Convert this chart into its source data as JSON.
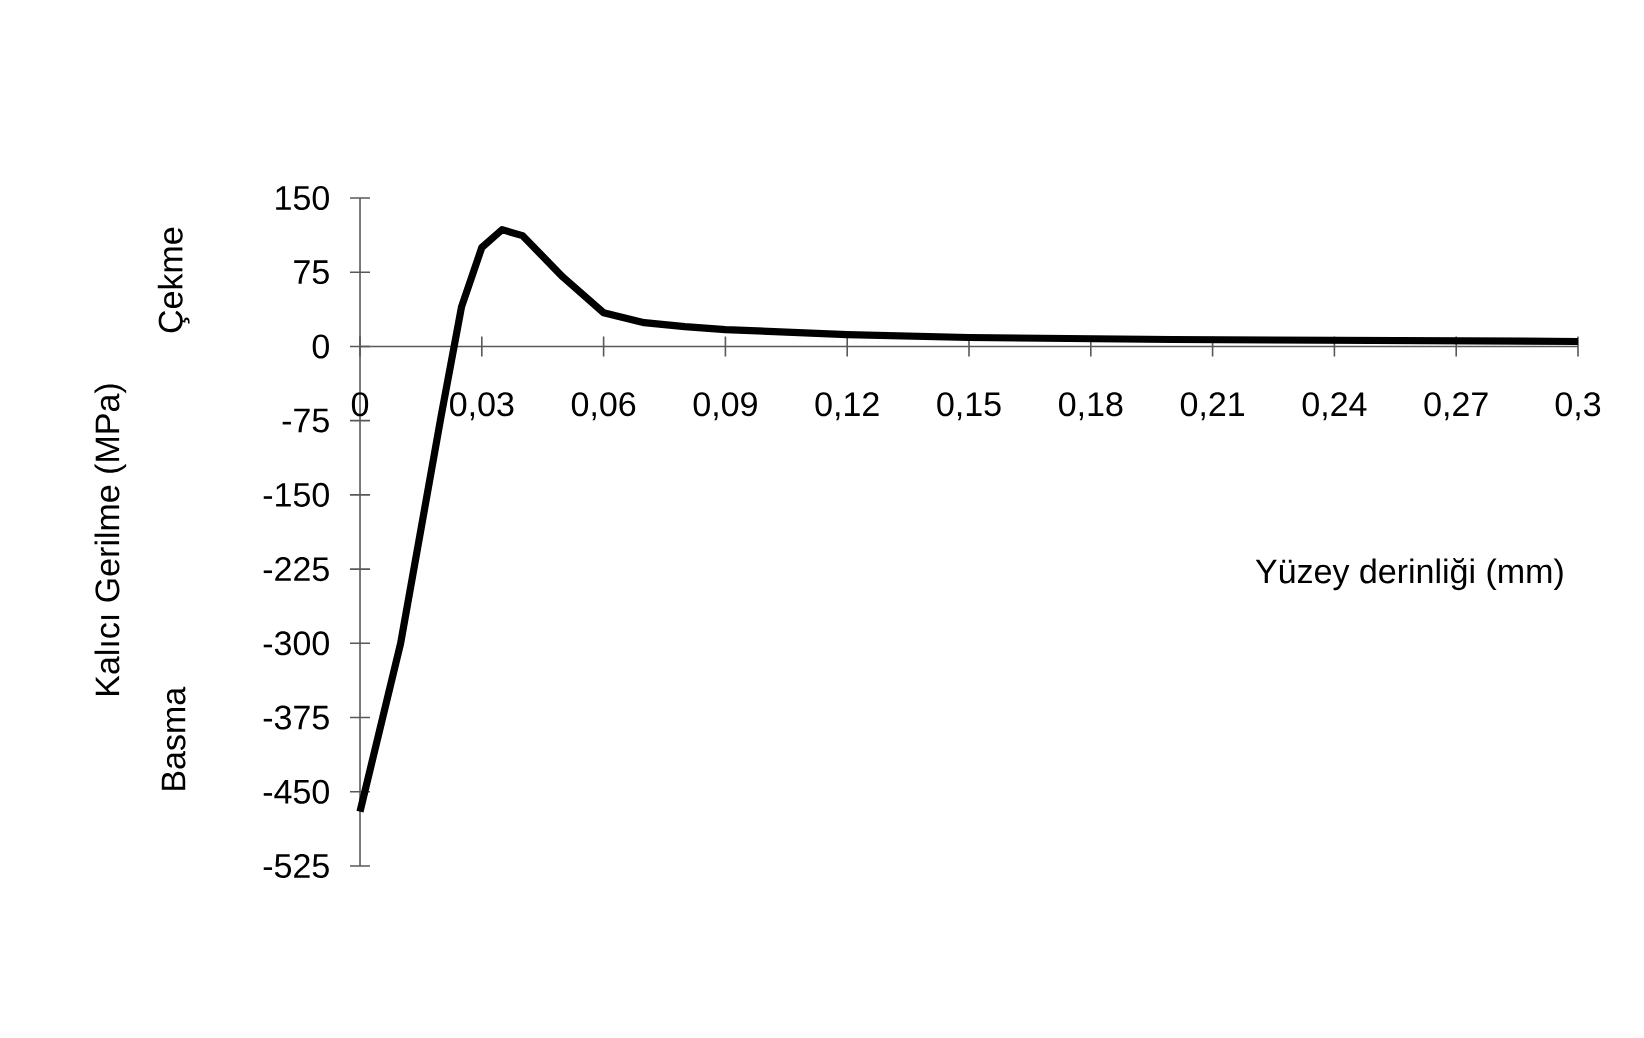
{
  "chart_data": {
    "type": "line",
    "xlabel": "Yüzey derinliği (mm)",
    "ylabel": "Kalıcı Gerilme (MPa)",
    "annotations": [
      "Çekme",
      "Basma"
    ],
    "x": [
      0,
      0.01,
      0.02,
      0.025,
      0.03,
      0.035,
      0.04,
      0.05,
      0.06,
      0.07,
      0.08,
      0.09,
      0.12,
      0.15,
      0.2,
      0.25,
      0.3
    ],
    "series": [
      {
        "color": "#000000",
        "values": [
          -470,
          -300,
          -70,
          40,
          100,
          118,
          112,
          70,
          34,
          24,
          20,
          17,
          12,
          9,
          7,
          6,
          5
        ]
      }
    ],
    "xlim": [
      0,
      0.3
    ],
    "xticks": [
      {
        "value": 0,
        "label": "0"
      },
      {
        "value": 0.03,
        "label": "0,03"
      },
      {
        "value": 0.06,
        "label": "0,06"
      },
      {
        "value": 0.09,
        "label": "0,09"
      },
      {
        "value": 0.12,
        "label": "0,12"
      },
      {
        "value": 0.15,
        "label": "0,15"
      },
      {
        "value": 0.18,
        "label": "0,18"
      },
      {
        "value": 0.21,
        "label": "0,21"
      },
      {
        "value": 0.24,
        "label": "0,24"
      },
      {
        "value": 0.27,
        "label": "0,27"
      },
      {
        "value": 0.3,
        "label": "0,3"
      }
    ],
    "ylim": [
      -525,
      150
    ],
    "yticks": [
      -525,
      -450,
      -375,
      -300,
      -225,
      -150,
      -75,
      0,
      75,
      150
    ],
    "grid": false,
    "marker": "none",
    "line_style": "solid"
  }
}
